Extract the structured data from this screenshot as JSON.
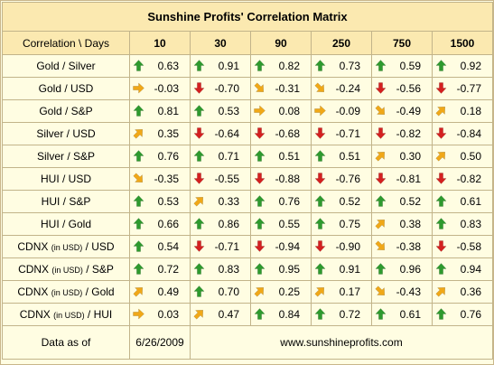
{
  "title": "Sunshine Profits' Correlation Matrix",
  "header": {
    "label": "Correlation \\ Days",
    "days": [
      "10",
      "30",
      "90",
      "250",
      "750",
      "1500"
    ]
  },
  "rows": [
    {
      "main": "Gold / Silver",
      "pre": "",
      "small": "",
      "post": "",
      "cells": [
        {
          "v": "0.63",
          "d": "up"
        },
        {
          "v": "0.91",
          "d": "up"
        },
        {
          "v": "0.82",
          "d": "up"
        },
        {
          "v": "0.73",
          "d": "up"
        },
        {
          "v": "0.59",
          "d": "up"
        },
        {
          "v": "0.92",
          "d": "up"
        }
      ]
    },
    {
      "main": "Gold / USD",
      "pre": "",
      "small": "",
      "post": "",
      "cells": [
        {
          "v": "-0.03",
          "d": "right"
        },
        {
          "v": "-0.70",
          "d": "down"
        },
        {
          "v": "-0.31",
          "d": "down-right"
        },
        {
          "v": "-0.24",
          "d": "down-right"
        },
        {
          "v": "-0.56",
          "d": "down"
        },
        {
          "v": "-0.77",
          "d": "down"
        }
      ]
    },
    {
      "main": "Gold / S&P",
      "pre": "",
      "small": "",
      "post": "",
      "cells": [
        {
          "v": "0.81",
          "d": "up"
        },
        {
          "v": "0.53",
          "d": "up"
        },
        {
          "v": "0.08",
          "d": "right"
        },
        {
          "v": "-0.09",
          "d": "right"
        },
        {
          "v": "-0.49",
          "d": "down-right"
        },
        {
          "v": "0.18",
          "d": "up-right"
        }
      ]
    },
    {
      "main": "Silver / USD",
      "pre": "",
      "small": "",
      "post": "",
      "cells": [
        {
          "v": "0.35",
          "d": "up-right"
        },
        {
          "v": "-0.64",
          "d": "down"
        },
        {
          "v": "-0.68",
          "d": "down"
        },
        {
          "v": "-0.71",
          "d": "down"
        },
        {
          "v": "-0.82",
          "d": "down"
        },
        {
          "v": "-0.84",
          "d": "down"
        }
      ]
    },
    {
      "main": "Silver / S&P",
      "pre": "",
      "small": "",
      "post": "",
      "cells": [
        {
          "v": "0.76",
          "d": "up"
        },
        {
          "v": "0.71",
          "d": "up"
        },
        {
          "v": "0.51",
          "d": "up"
        },
        {
          "v": "0.51",
          "d": "up"
        },
        {
          "v": "0.30",
          "d": "up-right"
        },
        {
          "v": "0.50",
          "d": "up-right"
        }
      ]
    },
    {
      "main": "HUI / USD",
      "pre": "",
      "small": "",
      "post": "",
      "cells": [
        {
          "v": "-0.35",
          "d": "down-right"
        },
        {
          "v": "-0.55",
          "d": "down"
        },
        {
          "v": "-0.88",
          "d": "down"
        },
        {
          "v": "-0.76",
          "d": "down"
        },
        {
          "v": "-0.81",
          "d": "down"
        },
        {
          "v": "-0.82",
          "d": "down"
        }
      ]
    },
    {
      "main": "HUI / S&P",
      "pre": "",
      "small": "",
      "post": "",
      "cells": [
        {
          "v": "0.53",
          "d": "up"
        },
        {
          "v": "0.33",
          "d": "up-right"
        },
        {
          "v": "0.76",
          "d": "up"
        },
        {
          "v": "0.52",
          "d": "up"
        },
        {
          "v": "0.52",
          "d": "up"
        },
        {
          "v": "0.61",
          "d": "up"
        }
      ]
    },
    {
      "main": "HUI / Gold",
      "pre": "",
      "small": "",
      "post": "",
      "cells": [
        {
          "v": "0.66",
          "d": "up"
        },
        {
          "v": "0.86",
          "d": "up"
        },
        {
          "v": "0.55",
          "d": "up"
        },
        {
          "v": "0.75",
          "d": "up"
        },
        {
          "v": "0.38",
          "d": "up-right"
        },
        {
          "v": "0.83",
          "d": "up"
        }
      ]
    },
    {
      "main": "",
      "pre": "CDNX ",
      "small": "(in USD)",
      "post": " / USD",
      "cells": [
        {
          "v": "0.54",
          "d": "up"
        },
        {
          "v": "-0.71",
          "d": "down"
        },
        {
          "v": "-0.94",
          "d": "down"
        },
        {
          "v": "-0.90",
          "d": "down"
        },
        {
          "v": "-0.38",
          "d": "down-right"
        },
        {
          "v": "-0.58",
          "d": "down"
        }
      ]
    },
    {
      "main": "",
      "pre": "CDNX ",
      "small": "(in USD)",
      "post": " / S&P",
      "cells": [
        {
          "v": "0.72",
          "d": "up"
        },
        {
          "v": "0.83",
          "d": "up"
        },
        {
          "v": "0.95",
          "d": "up"
        },
        {
          "v": "0.91",
          "d": "up"
        },
        {
          "v": "0.96",
          "d": "up"
        },
        {
          "v": "0.94",
          "d": "up"
        }
      ]
    },
    {
      "main": "",
      "pre": "CDNX ",
      "small": "(in USD)",
      "post": " / Gold",
      "cells": [
        {
          "v": "0.49",
          "d": "up-right"
        },
        {
          "v": "0.70",
          "d": "up"
        },
        {
          "v": "0.25",
          "d": "up-right"
        },
        {
          "v": "0.17",
          "d": "up-right"
        },
        {
          "v": "-0.43",
          "d": "down-right"
        },
        {
          "v": "0.36",
          "d": "up-right"
        }
      ]
    },
    {
      "main": "",
      "pre": "CDNX ",
      "small": "(in USD)",
      "post": " / HUI",
      "cells": [
        {
          "v": "0.03",
          "d": "right"
        },
        {
          "v": "0.47",
          "d": "up-right"
        },
        {
          "v": "0.84",
          "d": "up"
        },
        {
          "v": "0.72",
          "d": "up"
        },
        {
          "v": "0.61",
          "d": "up"
        },
        {
          "v": "0.76",
          "d": "up"
        }
      ]
    }
  ],
  "footer": {
    "data_as_of_label": "Data as of",
    "date": "6/26/2009",
    "website": "www.sunshineprofits.com"
  },
  "colors": {
    "up": "#2e9a2e",
    "down": "#d42020",
    "diagonal": "#f0a818",
    "header_bg": "#fbe9b0",
    "body_bg": "#fffde2",
    "border": "#c2b48a"
  },
  "icons": {
    "up": "arrow-up-icon",
    "down": "arrow-down-icon",
    "right": "arrow-right-icon",
    "up-right": "arrow-up-right-icon",
    "down-right": "arrow-down-right-icon"
  }
}
